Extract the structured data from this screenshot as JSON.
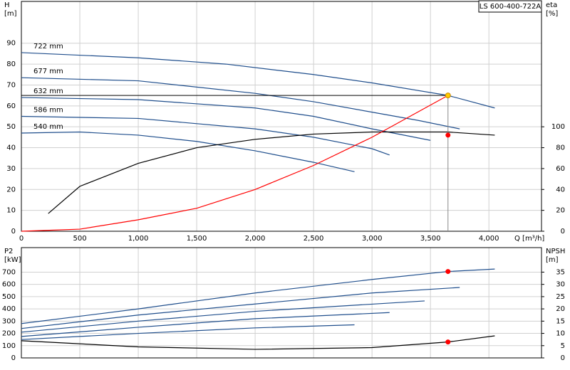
{
  "chart_data": [
    {
      "type": "line",
      "id_label": "LS 600-400-722A",
      "ylabel": "H",
      "yunit": "[m]",
      "y2label": "eta",
      "y2unit": "[%]",
      "xlabel": "Q [m³/h]",
      "xlim": [
        0,
        4450
      ],
      "ylim": [
        0,
        110
      ],
      "y2lim": [
        0,
        220
      ],
      "grid": true,
      "xticks": [
        0,
        500,
        {
          "value": 1000,
          "label": "1,000"
        },
        {
          "value": 1500,
          "label": "1,500"
        },
        {
          "value": 2000,
          "label": "2,000"
        },
        {
          "value": 2500,
          "label": "2,500"
        },
        {
          "value": 3000,
          "label": "3,000"
        },
        {
          "value": 3500,
          "label": "3,500"
        },
        {
          "value": 4000,
          "label": "4,000"
        }
      ],
      "yticks": [
        0,
        10,
        20,
        30,
        40,
        50,
        60,
        70,
        80,
        90
      ],
      "y2ticks": [
        0,
        20,
        40,
        60,
        80,
        100
      ],
      "series": [
        {
          "name": "722 mm",
          "color": "#1f4e8c",
          "x": [
            0,
            1000,
            1750,
            2500,
            3000,
            3650,
            4050
          ],
          "values": [
            85.5,
            83,
            80,
            75,
            71,
            65,
            59
          ]
        },
        {
          "name": "677 mm",
          "color": "#1f4e8c",
          "x": [
            0,
            1000,
            2000,
            2500,
            3000,
            3400,
            3750
          ],
          "values": [
            73.5,
            72,
            66,
            62,
            57,
            53,
            49
          ]
        },
        {
          "name": "632 mm",
          "color": "#1f4e8c",
          "x": [
            0,
            1000,
            2000,
            2500,
            3000,
            3500
          ],
          "values": [
            64,
            63,
            59,
            55,
            49,
            43.5
          ]
        },
        {
          "name": "586 mm",
          "color": "#1f4e8c",
          "x": [
            0,
            1000,
            2000,
            2500,
            3000,
            3150
          ],
          "values": [
            55,
            54,
            49,
            45,
            39.5,
            36.5
          ]
        },
        {
          "name": "540 mm",
          "color": "#1f4e8c",
          "x": [
            0,
            500,
            1000,
            1500,
            2000,
            2500,
            2850
          ],
          "values": [
            47,
            47.5,
            46,
            43,
            38.5,
            33,
            28.5
          ]
        },
        {
          "kind": "line",
          "color": "#000000",
          "axis": "y2",
          "x": [
            230,
            500,
            1000,
            1500,
            2000,
            2500,
            3000,
            3650,
            4050
          ],
          "values": [
            17,
            43,
            65,
            80,
            88,
            93,
            95,
            95,
            92
          ]
        },
        {
          "kind": "line",
          "color": "#ff0000",
          "x": [
            0,
            500,
            1000,
            1500,
            2000,
            2500,
            3000,
            3650
          ],
          "values": [
            0,
            1,
            5.5,
            11,
            20,
            31.5,
            45,
            65
          ]
        },
        {
          "kind": "point",
          "color": "#ffcc00",
          "x": [
            3650
          ],
          "values": [
            65
          ]
        },
        {
          "kind": "point",
          "color": "#ff0000",
          "axis": "y2",
          "x": [
            3650
          ],
          "values": [
            92
          ]
        }
      ]
    },
    {
      "type": "line",
      "ylabel": "P2",
      "yunit": "[kW]",
      "y2label": "NPSH",
      "y2unit": "[m]",
      "xlim": [
        0,
        4450
      ],
      "ylim": [
        0,
        900
      ],
      "y2lim": [
        0,
        45
      ],
      "grid": true,
      "xticks": [
        0,
        500,
        1000,
        1500,
        2000,
        2500,
        3000,
        3500,
        4000
      ],
      "yticks": [
        0,
        100,
        200,
        300,
        400,
        500,
        600,
        700
      ],
      "y2ticks": [
        0,
        5,
        10,
        15,
        20,
        25,
        30,
        35
      ],
      "series": [
        {
          "kind": "line",
          "color": "#1f4e8c",
          "x": [
            0,
            1000,
            2000,
            3000,
            3650,
            4050
          ],
          "values": [
            280,
            400,
            530,
            640,
            705,
            725
          ]
        },
        {
          "kind": "line",
          "color": "#1f4e8c",
          "x": [
            0,
            1000,
            2000,
            3000,
            3750
          ],
          "values": [
            240,
            350,
            440,
            530,
            575
          ]
        },
        {
          "kind": "line",
          "color": "#1f4e8c",
          "x": [
            0,
            1000,
            2000,
            3450
          ],
          "values": [
            210,
            300,
            380,
            465
          ]
        },
        {
          "kind": "line",
          "color": "#1f4e8c",
          "x": [
            0,
            1000,
            2000,
            3150
          ],
          "values": [
            175,
            250,
            320,
            370
          ]
        },
        {
          "kind": "line",
          "color": "#1f4e8c",
          "x": [
            0,
            1000,
            2000,
            2850
          ],
          "values": [
            150,
            200,
            245,
            270
          ]
        },
        {
          "kind": "line",
          "color": "#000000",
          "axis": "y2",
          "x": [
            0,
            1000,
            2000,
            3000,
            3650,
            4050
          ],
          "values": [
            7,
            4.5,
            3.5,
            4.2,
            6.5,
            9
          ]
        },
        {
          "kind": "point",
          "color": "#ff0000",
          "x": [
            3650
          ],
          "values": [
            705
          ]
        },
        {
          "kind": "point",
          "color": "#ff0000",
          "axis": "y2",
          "x": [
            3650
          ],
          "values": [
            6.5
          ]
        }
      ]
    }
  ]
}
